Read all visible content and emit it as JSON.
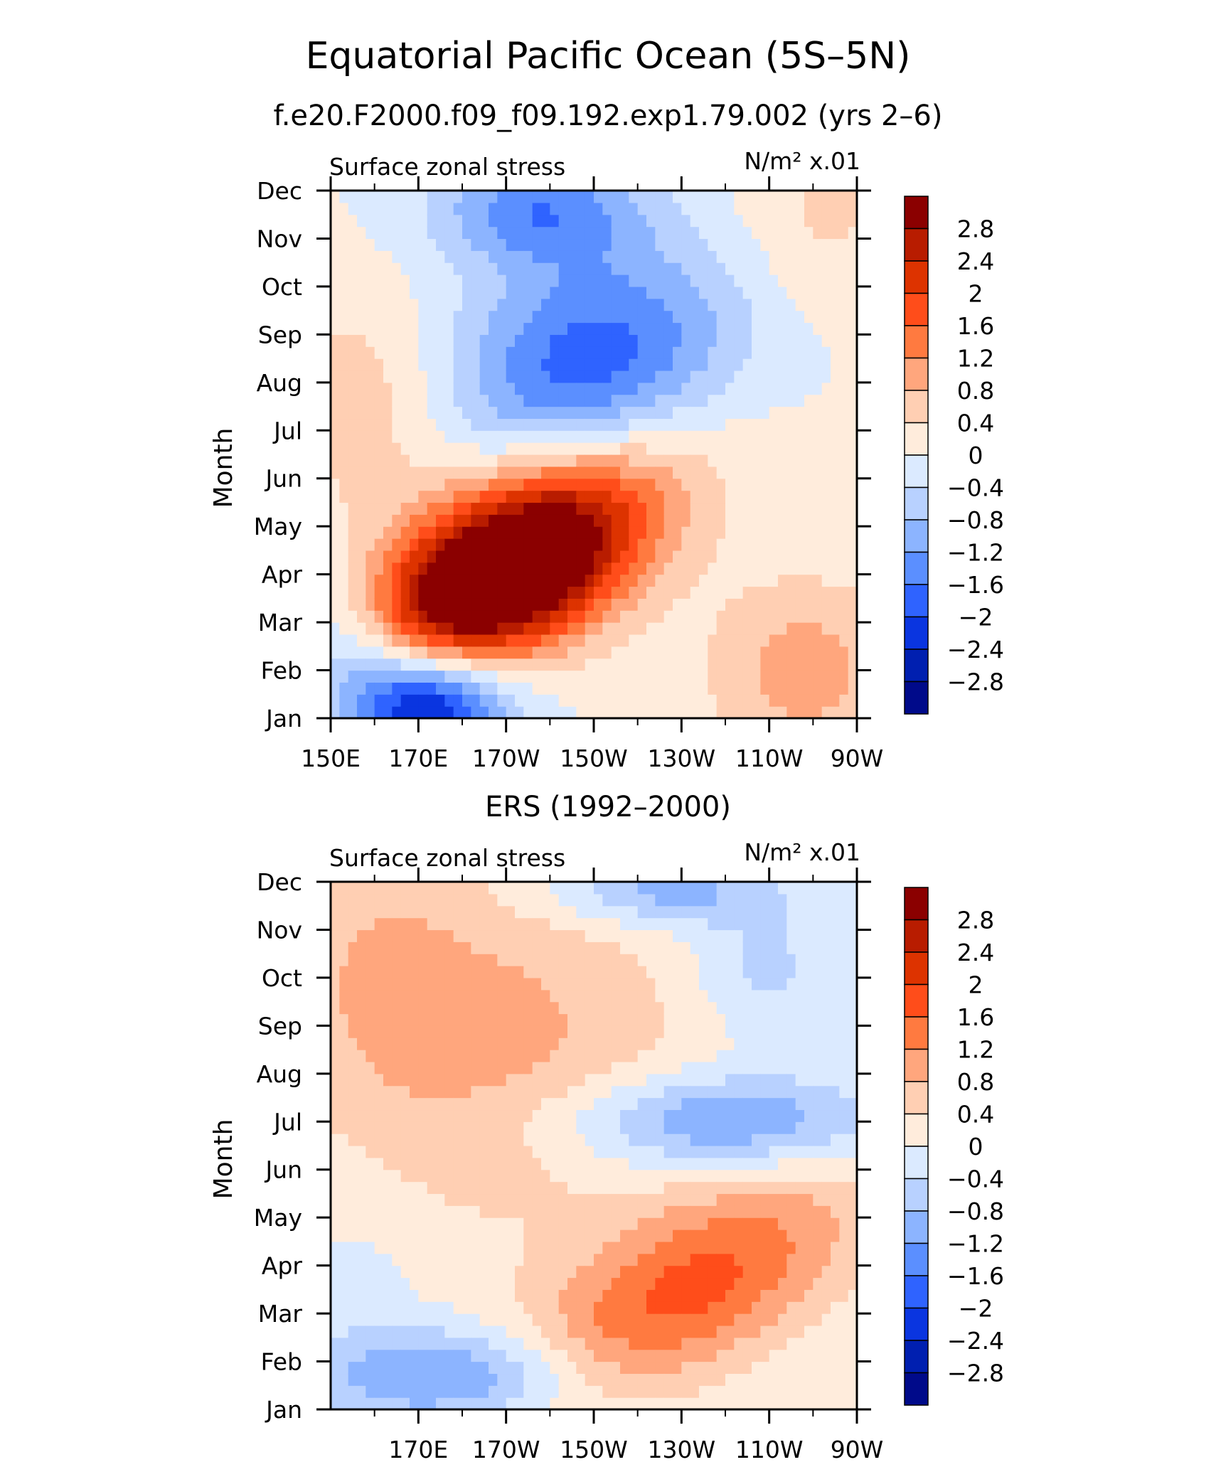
{
  "figure": {
    "title": "Equatorial Pacific Ocean (5S–5N)"
  },
  "colorbar": {
    "levels": [
      "2.8",
      "2.4",
      "2",
      "1.6",
      "1.2",
      "0.8",
      "0.4",
      "0",
      "−0.4",
      "−0.8",
      "−1.2",
      "−1.6",
      "−2",
      "−2.4",
      "−2.8"
    ],
    "colors": [
      "#8b0000",
      "#b81c00",
      "#dd3300",
      "#ff4d1a",
      "#ff7a40",
      "#ffa67d",
      "#ffcfb3",
      "#ffecdc",
      "#dbeaff",
      "#b8d1ff",
      "#8cb4ff",
      "#5b8fff",
      "#2f63ff",
      "#0a35e0",
      "#001fb0",
      "#000a8a"
    ]
  },
  "chart_data": [
    {
      "type": "heatmap",
      "title": "f.e20.F2000.f09_f09.192.exp1.79.002 (yrs 2–6)",
      "left_label": "Surface zonal stress",
      "units_label": "N/m² x.01",
      "ylabel": "Month",
      "x_ticks": [
        150,
        170,
        190,
        210,
        230,
        250,
        270
      ],
      "x_tick_labels": [
        "150E",
        "170E",
        "170W",
        "150W",
        "130W",
        "110W",
        "90W"
      ],
      "xlim": [
        150,
        270
      ],
      "y_tick_labels": [
        "Jan",
        "Feb",
        "Mar",
        "Apr",
        "May",
        "Jun",
        "Jul",
        "Aug",
        "Sep",
        "Oct",
        "Nov",
        "Dec"
      ],
      "ylim": [
        1,
        12
      ],
      "z_description": "longitude-month field of surface zonal stress anomaly",
      "features": [
        {
          "lon": 192,
          "month": 4.2,
          "value": 3.0,
          "sx": 22,
          "sy": 1.2,
          "rot": -0.55
        },
        {
          "lon": 177,
          "month": 3.3,
          "value": 1.4,
          "sx": 20,
          "sy": 0.9,
          "rot": -0.4
        },
        {
          "lon": 208,
          "month": 5.5,
          "value": 1.2,
          "sx": 28,
          "sy": 1.3,
          "rot": -0.5
        },
        {
          "lon": 210,
          "month": 8.2,
          "value": -2.0,
          "sx": 24,
          "sy": 1.7,
          "rot": -0.4
        },
        {
          "lon": 197,
          "month": 11.6,
          "value": -1.4,
          "sx": 16,
          "sy": 0.8,
          "rot": 0
        },
        {
          "lon": 172,
          "month": 1.2,
          "value": -2.8,
          "sx": 13,
          "sy": 1.0,
          "rot": 0
        },
        {
          "lon": 155,
          "month": 2.5,
          "value": -1.0,
          "sx": 10,
          "sy": 1.0,
          "rot": 0
        },
        {
          "lon": 158,
          "month": 7.5,
          "value": 0.7,
          "sx": 16,
          "sy": 1.8,
          "rot": -0.3
        },
        {
          "lon": 262,
          "month": 11.5,
          "value": 0.5,
          "sx": 14,
          "sy": 1.4,
          "rot": 0
        },
        {
          "lon": 258,
          "month": 2.0,
          "value": 1.0,
          "sx": 16,
          "sy": 1.4,
          "rot": 0
        }
      ]
    },
    {
      "type": "heatmap",
      "title": "ERS (1992–2000)",
      "left_label": "Surface zonal stress",
      "units_label": "N/m² x.01",
      "ylabel": "Month",
      "x_ticks": [
        170,
        190,
        210,
        230,
        250,
        270
      ],
      "x_tick_labels": [
        "170E",
        "170W",
        "150W",
        "130W",
        "110W",
        "90W"
      ],
      "xlim": [
        150,
        270
      ],
      "y_tick_labels": [
        "Jan",
        "Feb",
        "Mar",
        "Apr",
        "May",
        "Jun",
        "Jul",
        "Aug",
        "Sep",
        "Oct",
        "Nov",
        "Dec"
      ],
      "ylim": [
        1,
        12
      ],
      "z_description": "longitude-month field of surface zonal stress anomaly",
      "features": [
        {
          "lon": 232,
          "month": 3.5,
          "value": 1.7,
          "sx": 30,
          "sy": 1.2,
          "rot": -0.5
        },
        {
          "lon": 190,
          "month": 8.5,
          "value": 0.9,
          "sx": 32,
          "sy": 2.6,
          "rot": -0.3
        },
        {
          "lon": 160,
          "month": 10.5,
          "value": 0.5,
          "sx": 16,
          "sy": 2.0,
          "rot": 0
        },
        {
          "lon": 238,
          "month": 7.0,
          "value": -1.4,
          "sx": 26,
          "sy": 0.7,
          "rot": 0
        },
        {
          "lon": 225,
          "month": 11.8,
          "value": -1.1,
          "sx": 18,
          "sy": 0.5,
          "rot": 0
        },
        {
          "lon": 248,
          "month": 10.2,
          "value": -0.6,
          "sx": 12,
          "sy": 1.0,
          "rot": 0
        },
        {
          "lon": 178,
          "month": 1.7,
          "value": -1.4,
          "sx": 22,
          "sy": 0.7,
          "rot": 0
        },
        {
          "lon": 158,
          "month": 4.0,
          "value": -0.2,
          "sx": 10,
          "sy": 1.5,
          "rot": 0
        }
      ]
    }
  ]
}
